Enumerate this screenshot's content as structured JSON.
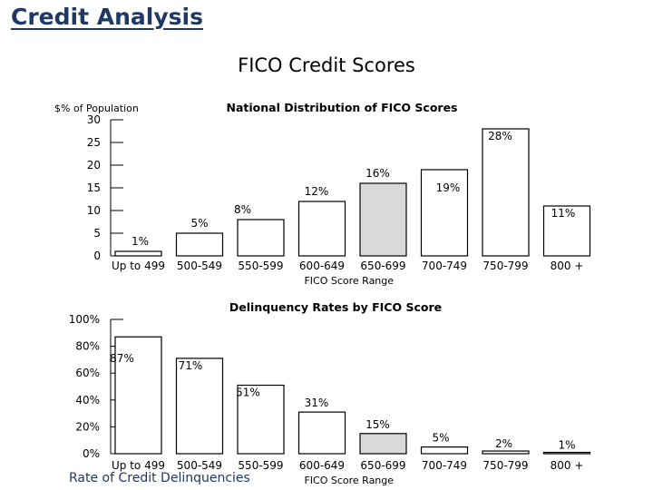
{
  "header": {
    "title": "Credit Analysis",
    "subtitle": "FICO Credit Scores"
  },
  "footer": {
    "label": "Rate of Credit Delinquencies"
  },
  "colors": {
    "heading": "#1f3864",
    "bar_default": "#ffffff",
    "bar_highlight": "#d9d9d9",
    "bar_stroke": "#000000"
  },
  "chart_data": [
    {
      "type": "bar",
      "title": "National Distribution of FICO Scores",
      "ylabel": "$% of Population",
      "xlabel": "FICO Score Range",
      "categories": [
        "Up to 499",
        "500-549",
        "550-599",
        "600-649",
        "650-699",
        "700-749",
        "750-799",
        "800 +"
      ],
      "values": [
        1,
        5,
        8,
        12,
        16,
        19,
        28,
        11
      ],
      "data_labels": [
        "1%",
        "5%",
        "8%",
        "12%",
        "16%",
        "19%",
        "28%",
        "11%"
      ],
      "highlight_index": 4,
      "yticks": [
        0,
        5,
        10,
        15,
        20,
        25,
        30
      ],
      "ytick_labels": [
        "0",
        "5",
        "10",
        "15",
        "20",
        "25",
        "30"
      ],
      "ylim": [
        0,
        30
      ],
      "grid": false
    },
    {
      "type": "bar",
      "title": "Delinquency Rates by FICO Score",
      "ylabel": "",
      "xlabel": "FICO Score Range",
      "categories": [
        "Up to 499",
        "500-549",
        "550-599",
        "600-649",
        "650-699",
        "700-749",
        "750-799",
        "800 +"
      ],
      "values": [
        87,
        71,
        51,
        31,
        15,
        5,
        2,
        1
      ],
      "data_labels": [
        "87%",
        "71%",
        "51%",
        "31%",
        "15%",
        "5%",
        "2%",
        "1%"
      ],
      "highlight_index": 4,
      "yticks": [
        0,
        20,
        40,
        60,
        80,
        100
      ],
      "ytick_labels": [
        "0%",
        "20%",
        "40%",
        "60%",
        "80%",
        "100%"
      ],
      "ylim": [
        0,
        100
      ],
      "grid": false
    }
  ]
}
